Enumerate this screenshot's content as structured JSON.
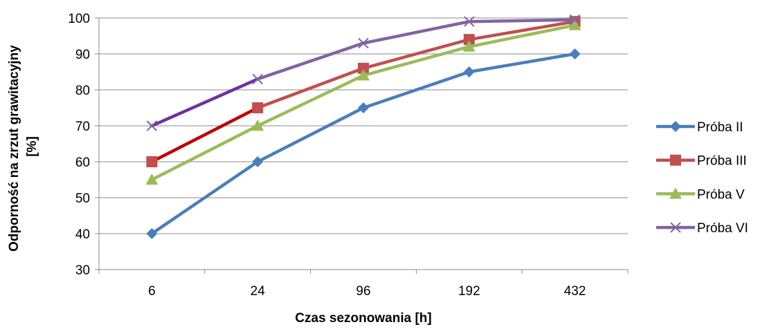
{
  "chart_data": {
    "type": "line",
    "xlabel": "Czas sezonowania [h]",
    "ylabel_lines": [
      "Odporność na zrzut grawitacyjny",
      "[%]"
    ],
    "categories": [
      "6",
      "24",
      "96",
      "192",
      "432"
    ],
    "ylim": [
      30,
      100
    ],
    "yticks": [
      30,
      40,
      50,
      60,
      70,
      80,
      90,
      100
    ],
    "grid": true,
    "legend_position": "right",
    "series": [
      {
        "name": "Próba II",
        "values": [
          40,
          60,
          75,
          85,
          90
        ],
        "color": "#4a7ebb",
        "marker": "diamond"
      },
      {
        "name": "Próba III",
        "values": [
          60,
          75,
          86,
          94,
          99
        ],
        "color": "#c0504d",
        "marker": "square",
        "first_segment_color": "#c00000"
      },
      {
        "name": "Próba V",
        "values": [
          55,
          70,
          84,
          92,
          98
        ],
        "color": "#9bbb59",
        "marker": "triangle"
      },
      {
        "name": "Próba VI",
        "values": [
          70,
          83,
          93,
          99,
          99.5
        ],
        "color": "#8064a2",
        "marker": "x",
        "first_segment_color": "#7030a0"
      }
    ]
  }
}
